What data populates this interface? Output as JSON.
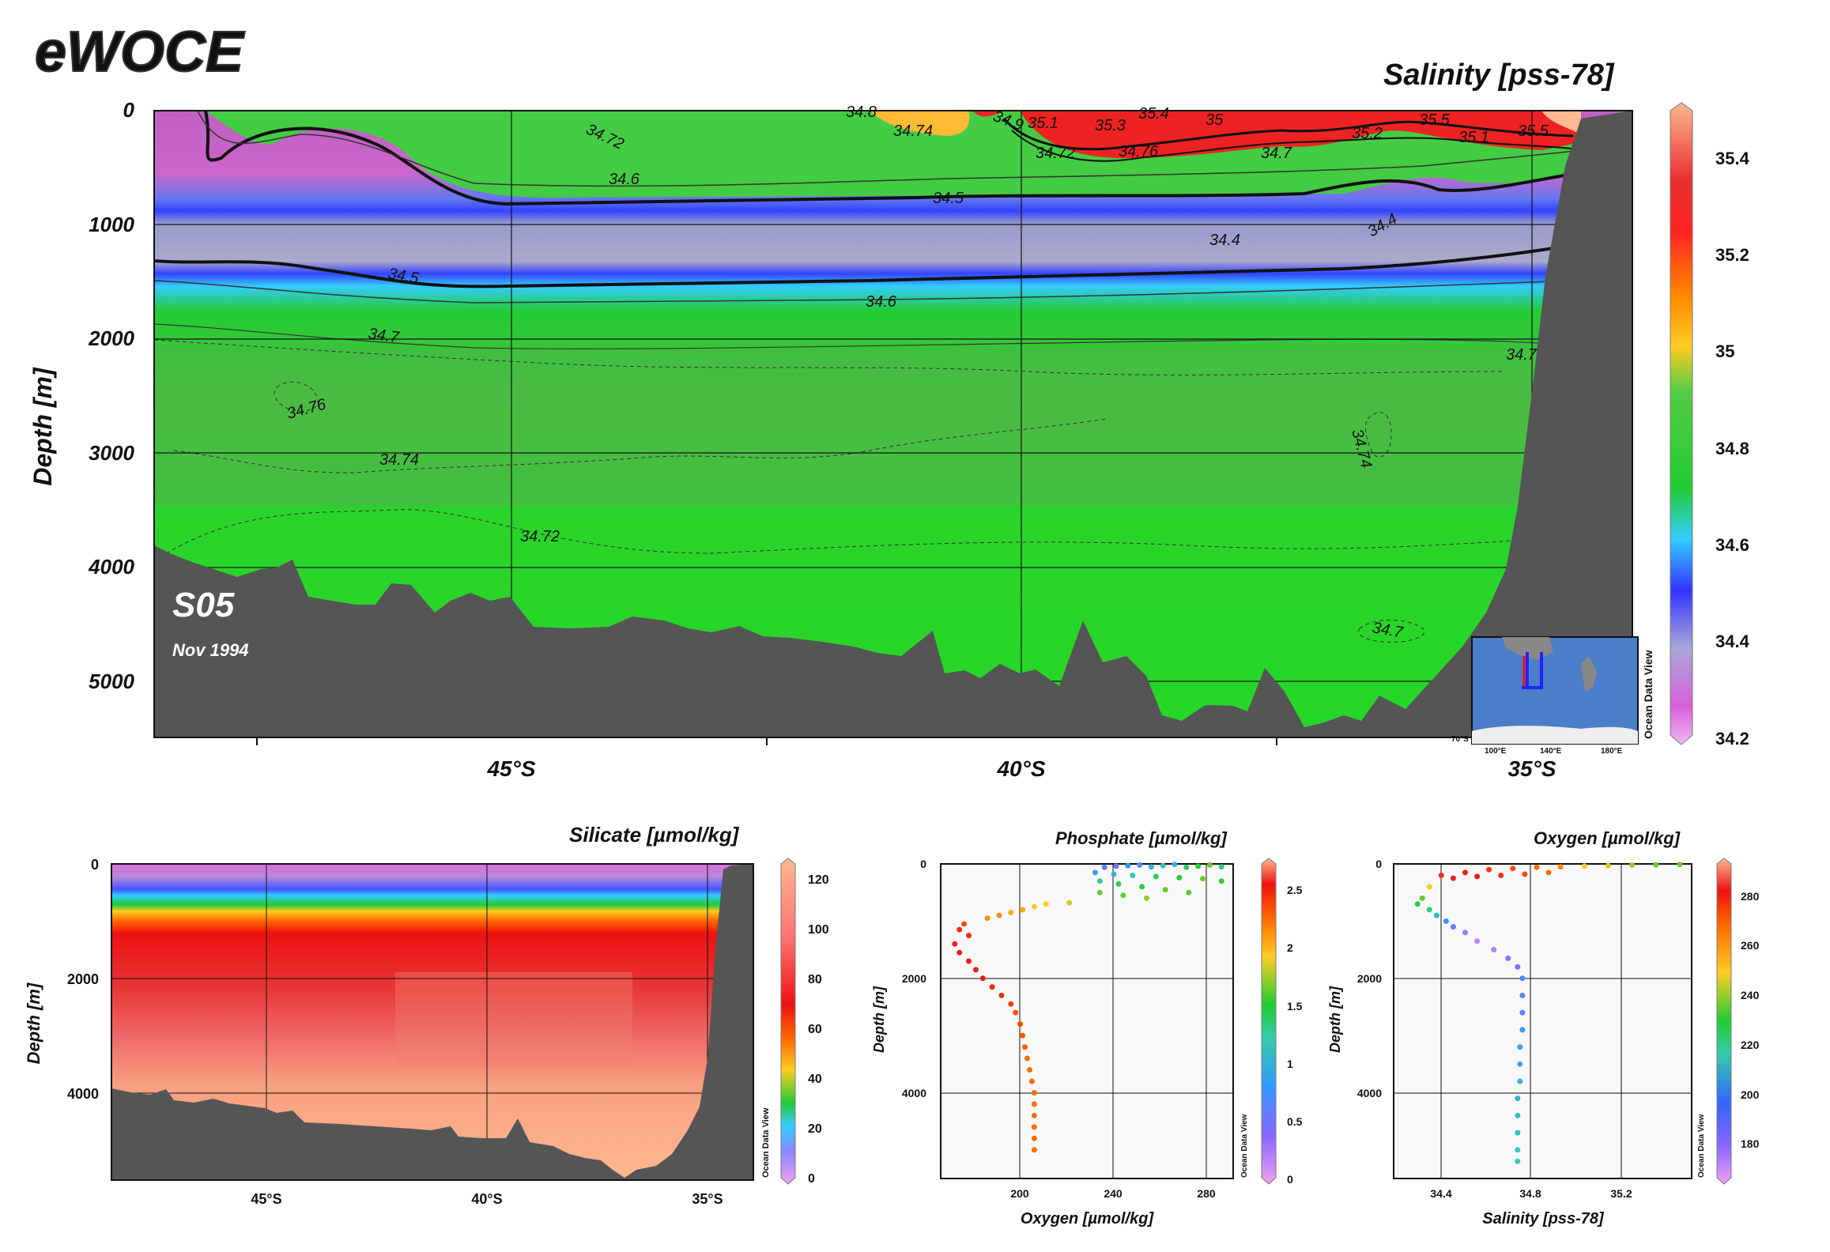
{
  "brand": {
    "logo_text": "eWOCE"
  },
  "main_section": {
    "title": "Salinity [pss-78]",
    "ylabel": "Depth [m]",
    "y_ticks": [
      "0",
      "1000",
      "2000",
      "3000",
      "4000",
      "5000"
    ],
    "x_ticks": [
      "45°S",
      "40°S",
      "35°S"
    ],
    "section_name": "S05",
    "date": "Nov 1994",
    "colorbar_ticks": [
      "35.4",
      "35.2",
      "35",
      "34.8",
      "34.6",
      "34.4",
      "34.2"
    ],
    "contour_labels": [
      "34.72",
      "34.8",
      "34.9",
      "35.1",
      "35.3",
      "35.4",
      "35",
      "35.5",
      "35.2",
      "35.1",
      "35.5",
      "34.74",
      "34.72",
      "34.76",
      "34.7",
      "34.6",
      "34.5",
      "34.4",
      "34.4",
      "34.5",
      "34.6",
      "34.7",
      "34.7",
      "34.76",
      "34.74",
      "34.74",
      "34.72",
      "34.7"
    ],
    "odv_label": "Ocean Data View",
    "inset_map_labels": [
      "100°E",
      "140°E",
      "180°E",
      "70°S"
    ]
  },
  "silicate_section": {
    "title": "Silicate [µmol/kg]",
    "ylabel": "Depth [m]",
    "y_ticks": [
      "0",
      "2000",
      "4000"
    ],
    "x_ticks": [
      "45°S",
      "40°S",
      "35°S"
    ],
    "colorbar_ticks": [
      "120",
      "100",
      "80",
      "60",
      "40",
      "20",
      "0"
    ],
    "odv_label": "Ocean Data View"
  },
  "phosphate_scatter": {
    "title": "Phosphate [µmol/kg]",
    "xlabel": "Oxygen [µmol/kg]",
    "ylabel": "Depth [m]",
    "y_ticks": [
      "0",
      "2000",
      "4000"
    ],
    "x_ticks": [
      "200",
      "240",
      "280"
    ],
    "colorbar_ticks": [
      "2.5",
      "2",
      "1.5",
      "1",
      "0.5",
      "0"
    ],
    "odv_label": "Ocean Data View"
  },
  "oxygen_scatter": {
    "title": "Oxygen [µmol/kg]",
    "xlabel": "Salinity [pss-78]",
    "ylabel": "Depth [m]",
    "y_ticks": [
      "0",
      "2000",
      "4000"
    ],
    "x_ticks": [
      "34.4",
      "34.8",
      "35.2"
    ],
    "colorbar_ticks": [
      "280",
      "260",
      "240",
      "220",
      "200",
      "180"
    ],
    "odv_label": "Ocean Data View"
  },
  "colors": {
    "bathymetry": "#555555",
    "deep_water": "#22cc33"
  },
  "chart_data": [
    {
      "type": "heatmap",
      "title": "Salinity [pss-78]",
      "xlabel": "",
      "ylabel": "Depth [m]",
      "x": [
        "45°S",
        "40°S",
        "35°S"
      ],
      "ylim": [
        5500,
        0
      ],
      "zlim": [
        34.2,
        35.5
      ],
      "bottom_depth": [
        {
          "lat": -48.5,
          "depth": 3800
        },
        {
          "lat": -47.0,
          "depth": 4150
        },
        {
          "lat": -45.0,
          "depth": 4300
        },
        {
          "lat": -43.0,
          "depth": 4500
        },
        {
          "lat": -41.0,
          "depth": 4750
        },
        {
          "lat": -39.0,
          "depth": 4900
        },
        {
          "lat": -37.0,
          "depth": 5200
        },
        {
          "lat": -35.8,
          "depth": 5350
        },
        {
          "lat": -35.0,
          "depth": 4300
        },
        {
          "lat": -34.2,
          "depth": 0
        }
      ],
      "contours": [
        34.4,
        34.5,
        34.6,
        34.7,
        34.72,
        34.74,
        34.76,
        34.8,
        35.0,
        35.2,
        35.4,
        35.5
      ]
    },
    {
      "type": "heatmap",
      "title": "Silicate [µmol/kg]",
      "xlabel": "",
      "ylabel": "Depth [m]",
      "x": [
        "45°S",
        "40°S",
        "35°S"
      ],
      "ylim": [
        5500,
        0
      ],
      "zlim": [
        0,
        125
      ]
    },
    {
      "type": "scatter",
      "title": "Phosphate [µmol/kg]",
      "xlabel": "Oxygen [µmol/kg]",
      "ylabel": "Depth [m]",
      "xlim": [
        170,
        295
      ],
      "ylim": [
        5500,
        0
      ],
      "color_by": "Phosphate [µmol/kg]",
      "clim": [
        0,
        2.7
      ],
      "points": [
        [
          240,
          60,
          0.6
        ],
        [
          245,
          40,
          0.5
        ],
        [
          250,
          30,
          0.8
        ],
        [
          255,
          20,
          0.7
        ],
        [
          260,
          50,
          1.0
        ],
        [
          265,
          30,
          1.2
        ],
        [
          270,
          10,
          1.0
        ],
        [
          275,
          60,
          1.4
        ],
        [
          280,
          40,
          1.5
        ],
        [
          285,
          20,
          1.6
        ],
        [
          290,
          50,
          1.3
        ],
        [
          236,
          150,
          0.9
        ],
        [
          244,
          180,
          1.0
        ],
        [
          252,
          200,
          1.2
        ],
        [
          262,
          220,
          1.4
        ],
        [
          272,
          240,
          1.5
        ],
        [
          282,
          260,
          1.6
        ],
        [
          290,
          300,
          1.5
        ],
        [
          238,
          300,
          1.3
        ],
        [
          246,
          350,
          1.4
        ],
        [
          256,
          400,
          1.5
        ],
        [
          266,
          450,
          1.6
        ],
        [
          276,
          500,
          1.6
        ],
        [
          238,
          500,
          1.6
        ],
        [
          248,
          550,
          1.6
        ],
        [
          258,
          600,
          1.7
        ],
        [
          225,
          680,
          1.8
        ],
        [
          215,
          700,
          1.9
        ],
        [
          210,
          750,
          1.9
        ],
        [
          205,
          800,
          2.0
        ],
        [
          200,
          850,
          2.0
        ],
        [
          195,
          900,
          2.1
        ],
        [
          190,
          950,
          2.1
        ],
        [
          180,
          1050,
          2.3
        ],
        [
          178,
          1150,
          2.4
        ],
        [
          182,
          1250,
          2.4
        ],
        [
          176,
          1400,
          2.5
        ],
        [
          178,
          1550,
          2.5
        ],
        [
          182,
          1700,
          2.5
        ],
        [
          185,
          1850,
          2.5
        ],
        [
          188,
          2000,
          2.45
        ],
        [
          192,
          2150,
          2.4
        ],
        [
          196,
          2300,
          2.4
        ],
        [
          200,
          2450,
          2.35
        ],
        [
          202,
          2600,
          2.3
        ],
        [
          204,
          2800,
          2.3
        ],
        [
          205,
          3000,
          2.25
        ],
        [
          206,
          3200,
          2.25
        ],
        [
          207,
          3400,
          2.2
        ],
        [
          208,
          3600,
          2.2
        ],
        [
          209,
          3800,
          2.2
        ],
        [
          210,
          4000,
          2.2
        ],
        [
          210,
          4200,
          2.2
        ],
        [
          210,
          4400,
          2.2
        ],
        [
          210,
          4600,
          2.2
        ],
        [
          210,
          4800,
          2.2
        ],
        [
          210,
          5000,
          2.2
        ]
      ]
    },
    {
      "type": "scatter",
      "title": "Oxygen [µmol/kg]",
      "xlabel": "Salinity [pss-78]",
      "ylabel": "Depth [m]",
      "xlim": [
        34.2,
        35.45
      ],
      "ylim": [
        5500,
        0
      ],
      "color_by": "Oxygen [µmol/kg]",
      "clim": [
        160,
        295
      ],
      "points": [
        [
          34.4,
          200,
          280
        ],
        [
          34.5,
          150,
          282
        ],
        [
          34.6,
          100,
          278
        ],
        [
          34.7,
          80,
          275
        ],
        [
          34.8,
          60,
          270
        ],
        [
          34.9,
          50,
          265
        ],
        [
          35.0,
          40,
          255
        ],
        [
          35.1,
          30,
          250
        ],
        [
          35.2,
          20,
          245
        ],
        [
          35.3,
          15,
          240
        ],
        [
          35.4,
          10,
          240
        ],
        [
          34.45,
          250,
          285
        ],
        [
          34.55,
          220,
          283
        ],
        [
          34.65,
          200,
          280
        ],
        [
          34.75,
          180,
          276
        ],
        [
          34.85,
          150,
          270
        ],
        [
          34.35,
          400,
          255
        ],
        [
          34.32,
          600,
          240
        ],
        [
          34.3,
          700,
          230
        ],
        [
          34.35,
          800,
          225
        ],
        [
          34.38,
          900,
          215
        ],
        [
          34.42,
          1000,
          200
        ],
        [
          34.45,
          1100,
          190
        ],
        [
          34.5,
          1200,
          175
        ],
        [
          34.55,
          1350,
          170
        ],
        [
          34.62,
          1500,
          172
        ],
        [
          34.68,
          1650,
          178
        ],
        [
          34.72,
          1800,
          185
        ],
        [
          34.74,
          2000,
          195
        ],
        [
          34.74,
          2300,
          195
        ],
        [
          34.74,
          2600,
          195
        ],
        [
          34.74,
          2900,
          200
        ],
        [
          34.73,
          3200,
          205
        ],
        [
          34.73,
          3500,
          208
        ],
        [
          34.73,
          3800,
          210
        ],
        [
          34.72,
          4100,
          212
        ],
        [
          34.72,
          4400,
          215
        ],
        [
          34.72,
          4700,
          218
        ],
        [
          34.72,
          5000,
          220
        ],
        [
          34.72,
          5200,
          220
        ]
      ]
    }
  ]
}
